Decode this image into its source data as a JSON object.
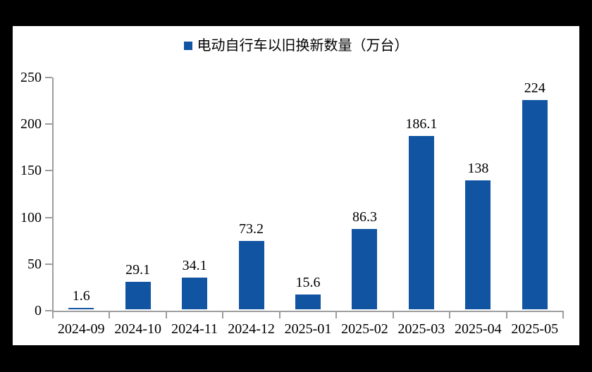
{
  "window": {
    "background_color": "#000000",
    "panel_color": "#ffffff"
  },
  "chart_data": {
    "type": "bar",
    "title": "",
    "legend_label": "电动自行车以旧换新数量（万台）",
    "legend_position": "top",
    "categories": [
      "2024-09",
      "2024-10",
      "2024-11",
      "2024-12",
      "2025-01",
      "2025-02",
      "2025-03",
      "2025-04",
      "2025-05"
    ],
    "values": [
      1.6,
      29.1,
      34.1,
      73.2,
      15.6,
      86.3,
      186.1,
      138,
      224
    ],
    "value_labels": [
      "1.6",
      "29.1",
      "34.1",
      "73.2",
      "15.6",
      "86.3",
      "186.1",
      "138",
      "224"
    ],
    "ylim": [
      0,
      250
    ],
    "yticks": [
      0,
      50,
      100,
      150,
      200,
      250
    ],
    "grid": false,
    "bar_color": "#1155A2",
    "axis_color": "#9d9d9d",
    "text_color": "#000000"
  }
}
